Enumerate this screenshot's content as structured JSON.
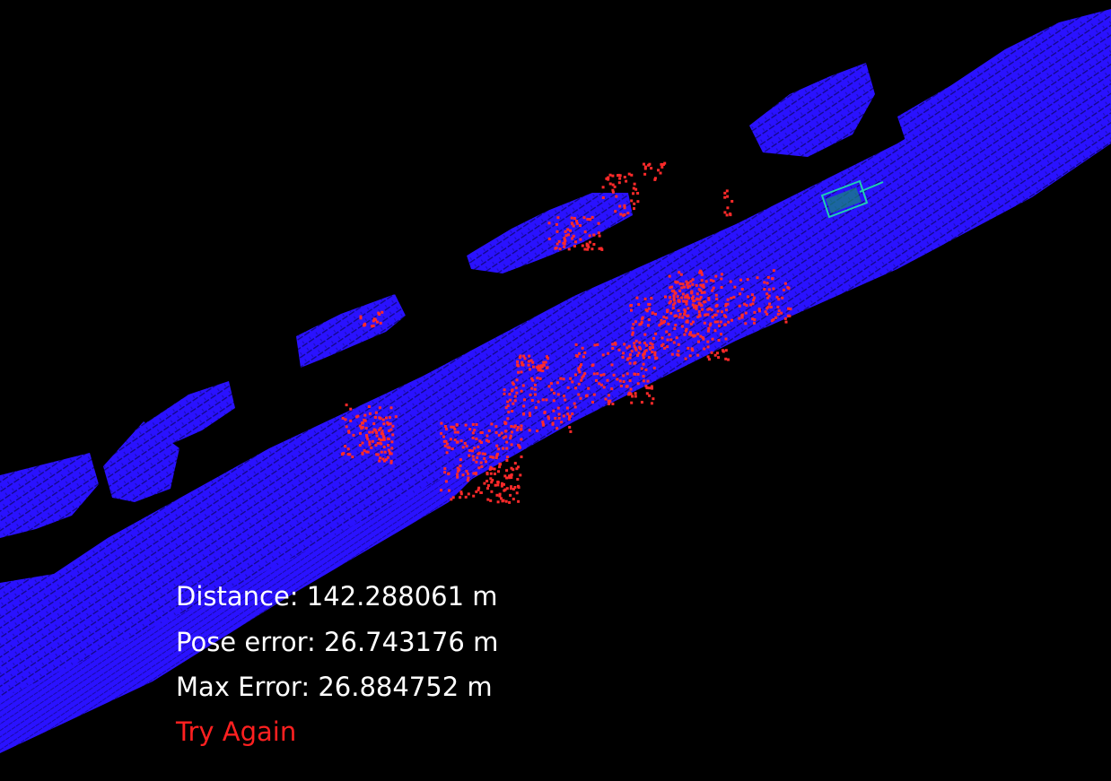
{
  "hud": {
    "distance": "Distance: 142.288061 m",
    "pose_error": "Pose error: 26.743176 m",
    "max_error": "Max Error: 26.884752 m",
    "try_again": "Try Again"
  },
  "colors": {
    "background": "#000000",
    "map_points": "#2a12ff",
    "scan_points": "#ff2a2a",
    "vehicle_marker": "#20b8a8",
    "hud_text": "#ffffff",
    "status_text": "#ff2020"
  }
}
